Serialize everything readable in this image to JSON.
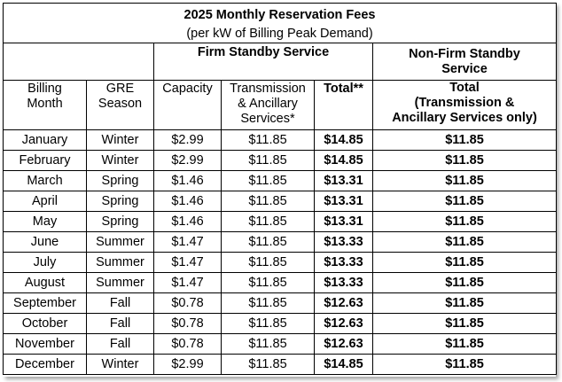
{
  "title": "2025 Monthly Reservation Fees",
  "subtitle": "(per kW of Billing Peak Demand)",
  "groups": {
    "firm": "Firm Standby Service",
    "nonfirm_line1": "Non-Firm Standby",
    "nonfirm_line2": "Service"
  },
  "headers": {
    "billing_month": [
      "Billing",
      "Month"
    ],
    "gre_season": [
      "GRE",
      "Season"
    ],
    "capacity": [
      "Capacity"
    ],
    "transmission": [
      "Transmission",
      "& Ancillary",
      "Services*"
    ],
    "total": [
      "Total**"
    ],
    "nonfirm_total": [
      "Total",
      "(Transmission &",
      "Ancillary Services only)"
    ]
  },
  "rows": [
    {
      "month": "January",
      "season": "Winter",
      "capacity": "$2.99",
      "transmission": "$11.85",
      "total": "$14.85",
      "nonfirm": "$11.85"
    },
    {
      "month": "February",
      "season": "Winter",
      "capacity": "$2.99",
      "transmission": "$11.85",
      "total": "$14.85",
      "nonfirm": "$11.85"
    },
    {
      "month": "March",
      "season": "Spring",
      "capacity": "$1.46",
      "transmission": "$11.85",
      "total": "$13.31",
      "nonfirm": "$11.85"
    },
    {
      "month": "April",
      "season": "Spring",
      "capacity": "$1.46",
      "transmission": "$11.85",
      "total": "$13.31",
      "nonfirm": "$11.85"
    },
    {
      "month": "May",
      "season": "Spring",
      "capacity": "$1.46",
      "transmission": "$11.85",
      "total": "$13.31",
      "nonfirm": "$11.85"
    },
    {
      "month": "June",
      "season": "Summer",
      "capacity": "$1.47",
      "transmission": "$11.85",
      "total": "$13.33",
      "nonfirm": "$11.85"
    },
    {
      "month": "July",
      "season": "Summer",
      "capacity": "$1.47",
      "transmission": "$11.85",
      "total": "$13.33",
      "nonfirm": "$11.85"
    },
    {
      "month": "August",
      "season": "Summer",
      "capacity": "$1.47",
      "transmission": "$11.85",
      "total": "$13.33",
      "nonfirm": "$11.85"
    },
    {
      "month": "September",
      "season": "Fall",
      "capacity": "$0.78",
      "transmission": "$11.85",
      "total": "$12.63",
      "nonfirm": "$11.85"
    },
    {
      "month": "October",
      "season": "Fall",
      "capacity": "$0.78",
      "transmission": "$11.85",
      "total": "$12.63",
      "nonfirm": "$11.85"
    },
    {
      "month": "November",
      "season": "Fall",
      "capacity": "$0.78",
      "transmission": "$11.85",
      "total": "$12.63",
      "nonfirm": "$11.85"
    },
    {
      "month": "December",
      "season": "Winter",
      "capacity": "$2.99",
      "transmission": "$11.85",
      "total": "$14.85",
      "nonfirm": "$11.85"
    }
  ]
}
